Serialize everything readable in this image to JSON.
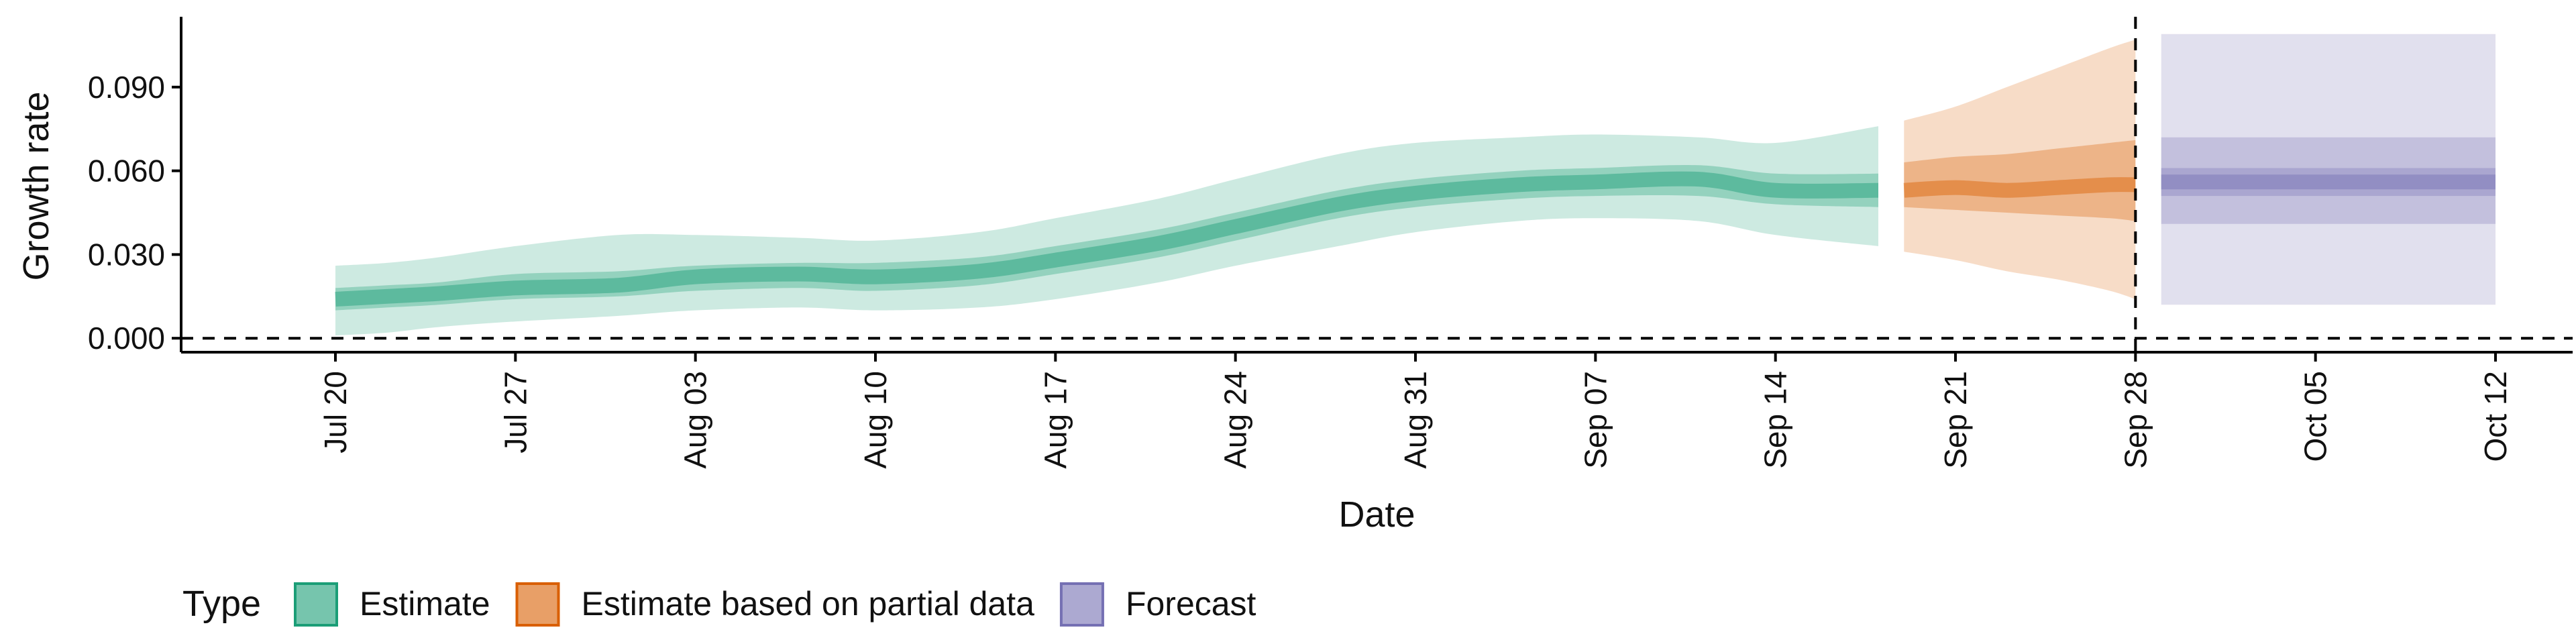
{
  "chart_data": {
    "type": "area",
    "xlabel": "Date",
    "ylabel": "Growth rate",
    "ylim": [
      -0.005,
      0.114
    ],
    "xlim": [
      "2020-07-14",
      "2020-10-15"
    ],
    "y_ticks": [
      0.0,
      0.03,
      0.06,
      0.09
    ],
    "y_tick_labels": [
      "0.000",
      "0.030",
      "0.060",
      "0.090"
    ],
    "x_ticks": [
      "2020-07-20",
      "2020-07-27",
      "2020-08-03",
      "2020-08-10",
      "2020-08-17",
      "2020-08-24",
      "2020-08-31",
      "2020-09-07",
      "2020-09-14",
      "2020-09-21",
      "2020-09-28",
      "2020-10-05",
      "2020-10-12"
    ],
    "x_tick_labels": [
      "Jul 20",
      "Jul 27",
      "Aug 03",
      "Aug 10",
      "Aug 17",
      "Aug 24",
      "Aug 31",
      "Sep 07",
      "Sep 14",
      "Sep 21",
      "Sep 28",
      "Oct 05",
      "Oct 12"
    ],
    "reference_lines": {
      "horizontal_y": 0.0,
      "vertical_x": "2020-09-28",
      "style": "dashed"
    },
    "grid": false,
    "legend": {
      "title": "Type",
      "position": "bottom-left",
      "entries": [
        "Estimate",
        "Estimate based on partial data",
        "Forecast"
      ]
    },
    "series": [
      {
        "name": "Estimate",
        "color": "#1b9e77",
        "x": [
          "2020-07-20",
          "2020-07-22",
          "2020-07-24",
          "2020-07-27",
          "2020-07-31",
          "2020-08-03",
          "2020-08-07",
          "2020-08-10",
          "2020-08-14",
          "2020-08-17",
          "2020-08-21",
          "2020-08-24",
          "2020-08-28",
          "2020-08-31",
          "2020-09-04",
          "2020-09-07",
          "2020-09-11",
          "2020-09-14",
          "2020-09-18"
        ],
        "median": [
          0.014,
          0.015,
          0.016,
          0.018,
          0.019,
          0.022,
          0.023,
          0.022,
          0.024,
          0.028,
          0.034,
          0.04,
          0.048,
          0.052,
          0.055,
          0.056,
          0.057,
          0.053,
          0.053
        ],
        "lower_50": [
          0.01,
          0.011,
          0.012,
          0.014,
          0.015,
          0.017,
          0.018,
          0.017,
          0.019,
          0.023,
          0.029,
          0.035,
          0.043,
          0.047,
          0.05,
          0.051,
          0.051,
          0.048,
          0.047
        ],
        "upper_50": [
          0.018,
          0.019,
          0.02,
          0.023,
          0.024,
          0.026,
          0.027,
          0.027,
          0.029,
          0.033,
          0.039,
          0.045,
          0.053,
          0.057,
          0.06,
          0.061,
          0.062,
          0.059,
          0.059
        ],
        "lower_90": [
          0.001,
          0.002,
          0.004,
          0.006,
          0.008,
          0.01,
          0.011,
          0.01,
          0.011,
          0.014,
          0.02,
          0.026,
          0.033,
          0.038,
          0.042,
          0.043,
          0.042,
          0.037,
          0.033
        ],
        "upper_90": [
          0.026,
          0.027,
          0.029,
          0.033,
          0.037,
          0.037,
          0.036,
          0.035,
          0.038,
          0.043,
          0.05,
          0.057,
          0.066,
          0.07,
          0.072,
          0.073,
          0.072,
          0.07,
          0.076
        ]
      },
      {
        "name": "Estimate based on partial data",
        "color": "#d95f02",
        "x": [
          "2020-09-19",
          "2020-09-21",
          "2020-09-23",
          "2020-09-25",
          "2020-09-27",
          "2020-09-28"
        ],
        "median": [
          0.053,
          0.054,
          0.053,
          0.054,
          0.055,
          0.055
        ],
        "lower_50": [
          0.047,
          0.046,
          0.045,
          0.044,
          0.043,
          0.042
        ],
        "upper_50": [
          0.063,
          0.065,
          0.066,
          0.068,
          0.07,
          0.071
        ],
        "lower_90": [
          0.031,
          0.028,
          0.024,
          0.021,
          0.017,
          0.014
        ],
        "upper_90": [
          0.078,
          0.083,
          0.09,
          0.097,
          0.104,
          0.107
        ]
      },
      {
        "name": "Forecast",
        "color": "#7570b3",
        "x": [
          "2020-09-29",
          "2020-10-12"
        ],
        "median": [
          0.056,
          0.056
        ],
        "lower_50": [
          0.051,
          0.051
        ],
        "upper_50": [
          0.061,
          0.061
        ],
        "lower_75": [
          0.041,
          0.041
        ],
        "upper_75": [
          0.072,
          0.072
        ],
        "lower_90": [
          0.012,
          0.012
        ],
        "upper_90": [
          0.109,
          0.109
        ]
      }
    ]
  }
}
